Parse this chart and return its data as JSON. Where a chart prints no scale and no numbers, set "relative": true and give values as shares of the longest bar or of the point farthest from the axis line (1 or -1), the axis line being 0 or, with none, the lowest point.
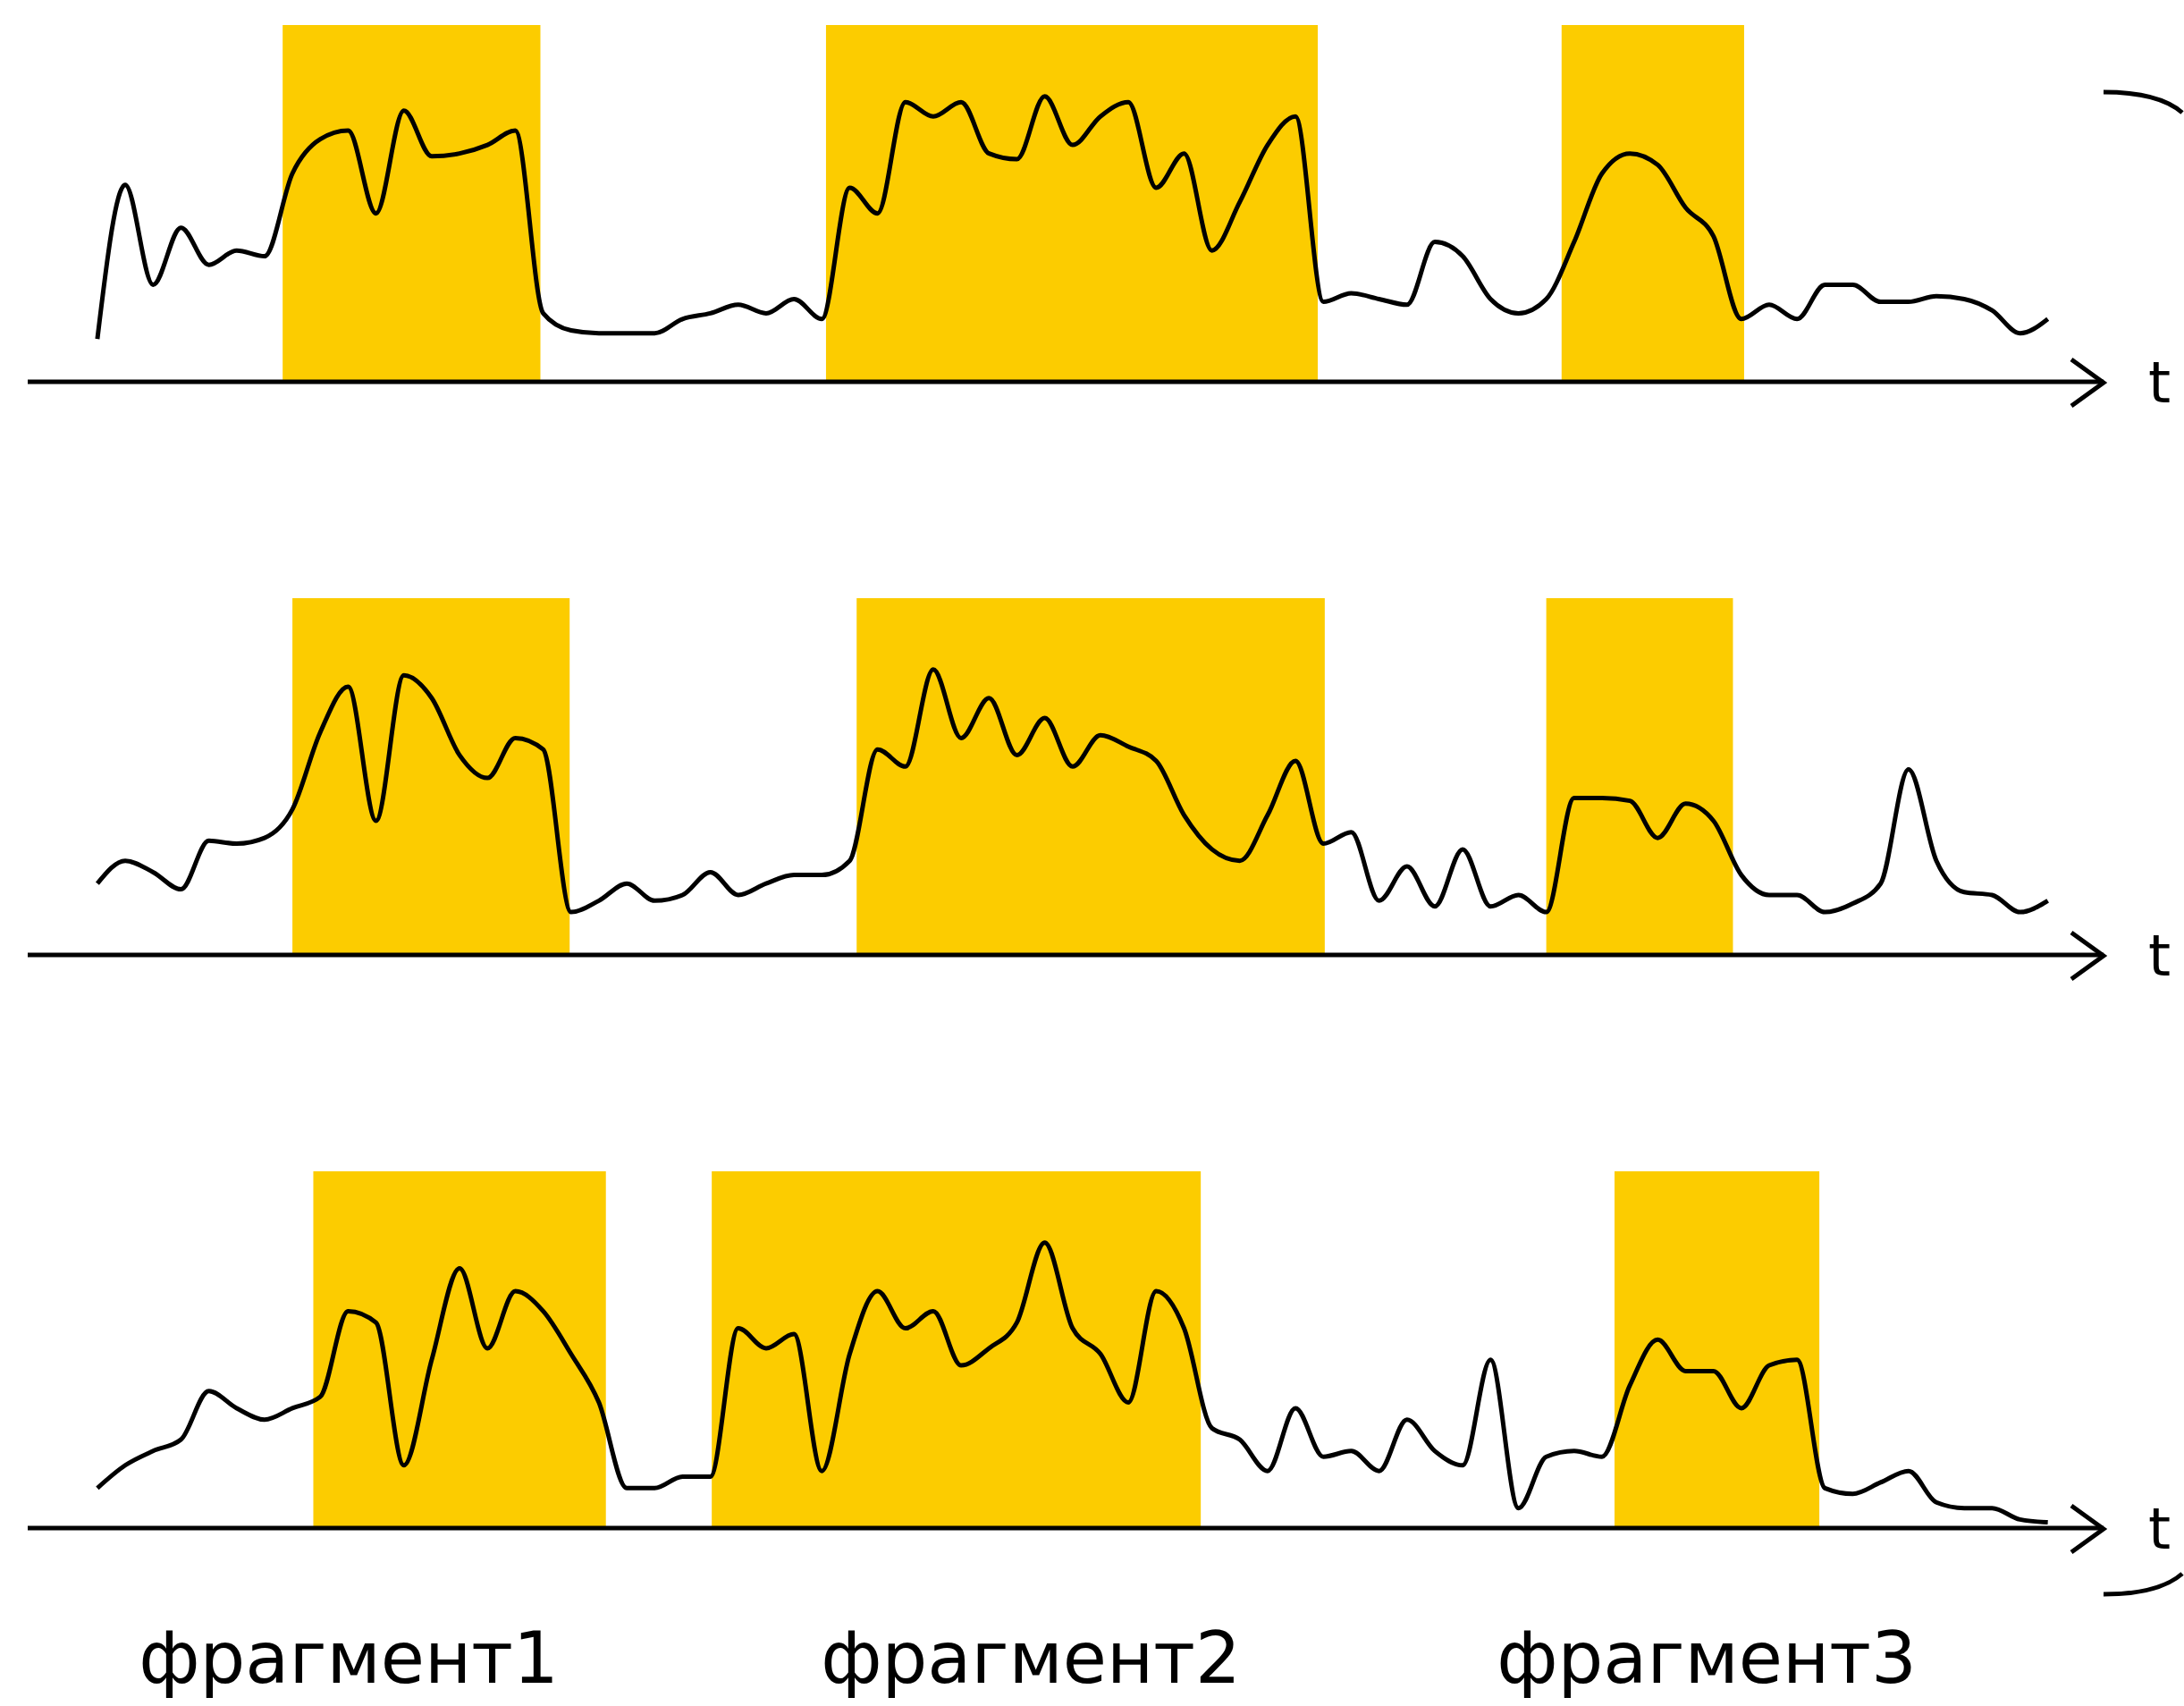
{
  "chart_data": [
    {
      "type": "line",
      "relative": true,
      "xlabel": "t",
      "categories": [
        null,
        null,
        null,
        null,
        null,
        null,
        null,
        null,
        null,
        null,
        null,
        null,
        null,
        null,
        null,
        null,
        null,
        null,
        null,
        null,
        null,
        null,
        null,
        null,
        null,
        null,
        null,
        null,
        null,
        null,
        null,
        null,
        null,
        null,
        null,
        null,
        null,
        null,
        null,
        null,
        null,
        null,
        null,
        null,
        null,
        null,
        null,
        null,
        null,
        null,
        null,
        null,
        null,
        null,
        null,
        null,
        null,
        null,
        null,
        null,
        null,
        null,
        null,
        null,
        null,
        null,
        null,
        null,
        null,
        null,
        null
      ],
      "series": [
        {
          "color": "#000000",
          "values": [
            0.15,
            0.69,
            0.34,
            0.54,
            0.41,
            0.46,
            0.44,
            0.73,
            0.85,
            0.88,
            0.59,
            0.95,
            0.79,
            0.8,
            0.83,
            0.88,
            0.24,
            0.18,
            0.17,
            0.17,
            0.17,
            0.22,
            0.24,
            0.27,
            0.24,
            0.29,
            0.22,
            0.68,
            0.59,
            0.98,
            0.93,
            0.98,
            0.8,
            0.78,
            1,
            0.83,
            0.93,
            0.98,
            0.68,
            0.8,
            0.46,
            0.63,
            0.83,
            0.93,
            0.28,
            0.31,
            0.29,
            0.27,
            0.49,
            0.44,
            0.29,
            0.24,
            0.29,
            0.49,
            0.73,
            0.8,
            0.76,
            0.61,
            0.51,
            0.22,
            0.27,
            0.22,
            0.34,
            0.34,
            0.28,
            0.28,
            0.3,
            0.29,
            0.25,
            0.17,
            0.22
          ]
        }
      ]
    },
    {
      "type": "line",
      "relative": true,
      "xlabel": "t",
      "categories": [
        null,
        null,
        null,
        null,
        null,
        null,
        null,
        null,
        null,
        null,
        null,
        null,
        null,
        null,
        null,
        null,
        null,
        null,
        null,
        null,
        null,
        null,
        null,
        null,
        null,
        null,
        null,
        null,
        null,
        null,
        null,
        null,
        null,
        null,
        null,
        null,
        null,
        null,
        null,
        null,
        null,
        null,
        null,
        null,
        null,
        null,
        null,
        null,
        null,
        null,
        null,
        null,
        null,
        null,
        null,
        null,
        null,
        null,
        null,
        null,
        null,
        null,
        null,
        null,
        null,
        null,
        null,
        null,
        null,
        null,
        null
      ],
      "series": [
        {
          "color": "#000000",
          "values": [
            0.25,
            0.33,
            0.29,
            0.23,
            0.4,
            0.39,
            0.41,
            0.51,
            0.78,
            0.94,
            0.47,
            0.98,
            0.9,
            0.7,
            0.62,
            0.76,
            0.72,
            0.15,
            0.19,
            0.25,
            0.19,
            0.21,
            0.29,
            0.21,
            0.25,
            0.28,
            0.28,
            0.33,
            0.72,
            0.66,
            1,
            0.76,
            0.9,
            0.7,
            0.83,
            0.66,
            0.77,
            0.73,
            0.68,
            0.49,
            0.37,
            0.33,
            0.49,
            0.68,
            0.39,
            0.43,
            0.19,
            0.31,
            0.17,
            0.37,
            0.17,
            0.21,
            0.15,
            0.55,
            0.55,
            0.54,
            0.41,
            0.53,
            0.47,
            0.28,
            0.21,
            0.21,
            0.15,
            0.18,
            0.25,
            0.65,
            0.33,
            0.22,
            0.21,
            0.15,
            0.19
          ]
        }
      ]
    },
    {
      "type": "line",
      "relative": true,
      "xlabel": "t",
      "categories": [
        null,
        null,
        null,
        null,
        null,
        null,
        null,
        null,
        null,
        null,
        null,
        null,
        null,
        null,
        null,
        null,
        null,
        null,
        null,
        null,
        null,
        null,
        null,
        null,
        null,
        null,
        null,
        null,
        null,
        null,
        null,
        null,
        null,
        null,
        null,
        null,
        null,
        null,
        null,
        null,
        null,
        null,
        null,
        null,
        null,
        null,
        null,
        null,
        null,
        null,
        null,
        null,
        null,
        null,
        null,
        null,
        null,
        null,
        null,
        null,
        null,
        null,
        null,
        null,
        null,
        null,
        null,
        null,
        null,
        null,
        null
      ],
      "series": [
        {
          "color": "#000000",
          "values": [
            0.14,
            0.22,
            0.27,
            0.31,
            0.48,
            0.42,
            0.38,
            0.42,
            0.46,
            0.76,
            0.72,
            0.22,
            0.59,
            0.91,
            0.63,
            0.83,
            0.76,
            0.61,
            0.44,
            0.14,
            0.14,
            0.18,
            0.18,
            0.7,
            0.63,
            0.68,
            0.2,
            0.61,
            0.83,
            0.7,
            0.76,
            0.57,
            0.63,
            0.72,
            1,
            0.7,
            0.61,
            0.44,
            0.83,
            0.7,
            0.35,
            0.31,
            0.2,
            0.42,
            0.25,
            0.27,
            0.2,
            0.38,
            0.27,
            0.22,
            0.59,
            0.07,
            0.25,
            0.27,
            0.25,
            0.5,
            0.66,
            0.55,
            0.55,
            0.42,
            0.57,
            0.59,
            0.14,
            0.12,
            0.16,
            0.2,
            0.09,
            0.07,
            0.07,
            0.03,
            0.02
          ]
        }
      ],
      "annotations": [
        "фрагмент1",
        "фрагмент2",
        "фрагмент3"
      ]
    }
  ]
}
